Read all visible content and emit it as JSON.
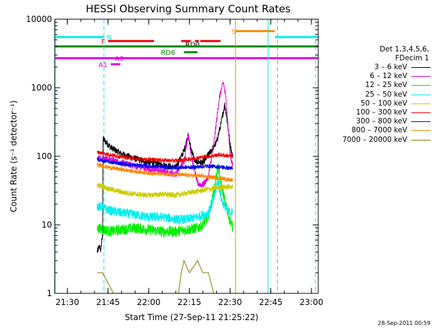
{
  "chart_data": {
    "type": "line",
    "title": "HESSI Observing Summary Count Rates",
    "xlabel": "Start Time (27-Sep-11 21:25:22)",
    "ylabel": "Count Rate (s⁻¹ detector⁻¹)",
    "ylog": true,
    "ylim": [
      1,
      10000
    ],
    "xlim": [
      "21:25:22",
      "23:02:30"
    ],
    "x_ticks": [
      "21:30",
      "21:45",
      "22:00",
      "22:15",
      "22:30",
      "22:45",
      "23:00"
    ],
    "y_ticks": [
      "1",
      "10",
      "100",
      "1000",
      "10000"
    ],
    "legend": {
      "placement": "right-outside",
      "header": [
        "Det 1,3,4,5,6,",
        "FDecim 1"
      ],
      "entries": [
        {
          "label": "3 – 6 keV",
          "color": "#000000"
        },
        {
          "label": "6 – 12 keV",
          "color": "#dd00dd"
        },
        {
          "label": "12 – 25 keV",
          "color": "#00ee00"
        },
        {
          "label": "25 – 50 keV",
          "color": "#00eeee"
        },
        {
          "label": "50 – 100 keV",
          "color": "#cccc00"
        },
        {
          "label": "100 – 300 keV",
          "color": "#ee0000"
        },
        {
          "label": "300 – 800 keV",
          "color": "#0000ee"
        },
        {
          "label": "800 – 7000 keV",
          "color": "#ff8800"
        },
        {
          "label": "7000 – 20000 keV",
          "color": "#887700"
        }
      ]
    },
    "series": [
      {
        "name": "3 – 6 keV",
        "color": "#000000",
        "noise": 0.05,
        "points": [
          [
            "21:41:00",
            4
          ],
          [
            "21:42:00",
            5
          ],
          [
            "21:42:10",
            4
          ],
          [
            "21:43:00",
            7
          ],
          [
            "21:43:10",
            180
          ],
          [
            "21:44:00",
            165
          ],
          [
            "21:46:00",
            135
          ],
          [
            "21:48:00",
            120
          ],
          [
            "21:50:00",
            108
          ],
          [
            "21:55:00",
            92
          ],
          [
            "22:00:00",
            82
          ],
          [
            "22:05:00",
            75
          ],
          [
            "22:10:00",
            68
          ],
          [
            "22:13:00",
            120
          ],
          [
            "22:14:30",
            200
          ],
          [
            "22:15:30",
            135
          ],
          [
            "22:17:00",
            85
          ],
          [
            "22:20:00",
            80
          ],
          [
            "22:23:00",
            120
          ],
          [
            "22:25:00",
            160
          ],
          [
            "22:26:30",
            280
          ],
          [
            "22:28:00",
            560
          ],
          [
            "22:28:30",
            450
          ],
          [
            "22:30:00",
            150
          ],
          [
            "22:31:00",
            95
          ]
        ]
      },
      {
        "name": "6 – 12 keV",
        "color": "#dd00dd",
        "noise": 0.05,
        "points": [
          [
            "21:41:00",
            95
          ],
          [
            "21:46:00",
            90
          ],
          [
            "21:50:00",
            80
          ],
          [
            "21:55:00",
            72
          ],
          [
            "22:00:00",
            66
          ],
          [
            "22:05:00",
            60
          ],
          [
            "22:10:00",
            55
          ],
          [
            "22:13:00",
            85
          ],
          [
            "22:14:30",
            210
          ],
          [
            "22:16:00",
            90
          ],
          [
            "22:18:00",
            40
          ],
          [
            "22:20:00",
            38
          ],
          [
            "22:22:00",
            50
          ],
          [
            "22:24:00",
            150
          ],
          [
            "22:26:00",
            700
          ],
          [
            "22:27:30",
            1200
          ],
          [
            "22:28:30",
            700
          ],
          [
            "22:30:00",
            110
          ],
          [
            "22:31:00",
            70
          ]
        ]
      },
      {
        "name": "12 – 25 keV",
        "color": "#00ee00",
        "noise": 0.08,
        "points": [
          [
            "21:41:00",
            9
          ],
          [
            "21:46:00",
            8
          ],
          [
            "21:50:00",
            8.5
          ],
          [
            "21:55:00",
            9
          ],
          [
            "22:00:00",
            8.5
          ],
          [
            "22:05:00",
            8
          ],
          [
            "22:10:00",
            8
          ],
          [
            "22:14:00",
            8.5
          ],
          [
            "22:18:00",
            9
          ],
          [
            "22:20:00",
            10
          ],
          [
            "22:22:00",
            13
          ],
          [
            "22:24:00",
            30
          ],
          [
            "22:25:30",
            70
          ],
          [
            "22:27:00",
            35
          ],
          [
            "22:29:00",
            15
          ],
          [
            "22:31:00",
            9
          ]
        ]
      },
      {
        "name": "25 – 50 keV",
        "color": "#00eeee",
        "noise": 0.07,
        "points": [
          [
            "21:41:00",
            19
          ],
          [
            "21:46:00",
            16
          ],
          [
            "21:50:00",
            15
          ],
          [
            "21:55:00",
            14
          ],
          [
            "22:00:00",
            13
          ],
          [
            "22:05:00",
            13
          ],
          [
            "22:10:00",
            12
          ],
          [
            "22:14:00",
            12
          ],
          [
            "22:18:00",
            13
          ],
          [
            "22:20:00",
            14
          ],
          [
            "22:22:00",
            15
          ],
          [
            "22:24:00",
            24
          ],
          [
            "22:25:30",
            45
          ],
          [
            "22:27:00",
            22
          ],
          [
            "22:29:00",
            16
          ],
          [
            "22:31:00",
            15
          ]
        ]
      },
      {
        "name": "50 – 100 keV",
        "color": "#cccc00",
        "noise": 0.04,
        "points": [
          [
            "21:41:00",
            38
          ],
          [
            "21:46:00",
            33
          ],
          [
            "21:50:00",
            30
          ],
          [
            "21:55:00",
            28
          ],
          [
            "22:00:00",
            27
          ],
          [
            "22:05:00",
            28
          ],
          [
            "22:10:00",
            27
          ],
          [
            "22:14:00",
            29
          ],
          [
            "22:18:00",
            31
          ],
          [
            "22:22:00",
            33
          ],
          [
            "22:26:00",
            35
          ],
          [
            "22:31:00",
            36
          ]
        ]
      },
      {
        "name": "100 – 300 keV",
        "color": "#ee0000",
        "noise": 0.03,
        "points": [
          [
            "21:41:00",
            115
          ],
          [
            "21:46:00",
            105
          ],
          [
            "21:50:00",
            98
          ],
          [
            "21:55:00",
            92
          ],
          [
            "22:00:00",
            90
          ],
          [
            "22:05:00",
            88
          ],
          [
            "22:10:00",
            86
          ],
          [
            "22:14:00",
            90
          ],
          [
            "22:18:00",
            95
          ],
          [
            "22:22:00",
            100
          ],
          [
            "22:26:00",
            105
          ],
          [
            "22:31:00",
            100
          ]
        ]
      },
      {
        "name": "300 – 800 keV",
        "color": "#0000ee",
        "noise": 0.03,
        "points": [
          [
            "21:41:00",
            90
          ],
          [
            "21:46:00",
            82
          ],
          [
            "21:50:00",
            78
          ],
          [
            "21:55:00",
            74
          ],
          [
            "22:00:00",
            72
          ],
          [
            "22:05:00",
            70
          ],
          [
            "22:10:00",
            68
          ],
          [
            "22:14:00",
            69
          ],
          [
            "22:18:00",
            70
          ],
          [
            "22:22:00",
            72
          ],
          [
            "22:26:00",
            70
          ],
          [
            "22:31:00",
            66
          ]
        ]
      },
      {
        "name": "800 – 7000 keV",
        "color": "#ff8800",
        "noise": 0.03,
        "points": [
          [
            "21:41:00",
            75
          ],
          [
            "21:46:00",
            68
          ],
          [
            "21:50:00",
            64
          ],
          [
            "21:55:00",
            60
          ],
          [
            "22:00:00",
            57
          ],
          [
            "22:05:00",
            55
          ],
          [
            "22:10:00",
            54
          ],
          [
            "22:14:00",
            53
          ],
          [
            "22:18:00",
            52
          ],
          [
            "22:22:00",
            50
          ],
          [
            "22:26:00",
            48
          ],
          [
            "22:31:00",
            45
          ]
        ]
      },
      {
        "name": "7000 – 20000 keV",
        "color": "#887700",
        "noise": 0.0,
        "points": [
          [
            "21:41:00",
            2
          ],
          [
            "21:43:00",
            2
          ],
          [
            "21:47:00",
            1
          ],
          [
            "22:11:00",
            1
          ],
          [
            "22:12:00",
            2
          ],
          [
            "22:13:00",
            3
          ],
          [
            "22:15:00",
            2
          ],
          [
            "22:18:00",
            3
          ],
          [
            "22:20:00",
            2
          ],
          [
            "22:22:00",
            2
          ],
          [
            "22:24:00",
            1
          ]
        ]
      }
    ],
    "flag_bars": [
      {
        "label": "N",
        "color": "#00eeee",
        "y": 5500,
        "ranges": [
          [
            "21:25:22",
            "21:43:30"
          ],
          [
            "22:46:30",
            "23:02:30"
          ]
        ],
        "label_at": "21:44:30"
      },
      {
        "label": "S",
        "color": "#ff8800",
        "y": 6700,
        "ranges": [
          [
            "22:32:00",
            "22:46:30"
          ]
        ],
        "label_at": "22:30:30"
      },
      {
        "label": "F",
        "color": "#ee0000",
        "y": 4800,
        "ranges": [
          [
            "21:45:00",
            "22:02:00"
          ],
          [
            "22:12:00",
            "22:15:30"
          ],
          [
            "22:17:00",
            "22:18:30"
          ],
          [
            "22:19:00",
            "22:26:30"
          ]
        ],
        "label_at": "21:42:30"
      },
      {
        "label": "RD0",
        "color": "#000000",
        "y": 4300,
        "ranges": [],
        "label_at": "22:13:30"
      },
      {
        "label": "",
        "color": "#008800",
        "y": 4000,
        "ranges": [
          [
            "21:25:22",
            "23:02:30"
          ]
        ],
        "label_at": ""
      },
      {
        "label": "RD6",
        "color": "#008800",
        "y": 3300,
        "ranges": [
          [
            "22:13:00",
            "22:18:00"
          ]
        ],
        "label_at": "22:04:30"
      },
      {
        "label": "A0",
        "color": "#dd00dd",
        "y": 2700,
        "ranges": [
          [
            "21:25:22",
            "23:02:30"
          ]
        ],
        "label_at": "21:47:30"
      },
      {
        "label": "A1",
        "color": "#dd00dd",
        "y": 2200,
        "ranges": [
          [
            "21:46:00",
            "21:49:30"
          ]
        ],
        "label_at": "21:41:30"
      }
    ],
    "vertical_lines": [
      {
        "time": "21:25:30",
        "color": "#00eeee",
        "style": "solid"
      },
      {
        "time": "21:43:30",
        "color": "#00eeee",
        "style": "dashed"
      },
      {
        "time": "22:32:00",
        "color": "#cc9900",
        "style": "solid"
      },
      {
        "time": "22:44:00",
        "color": "#00eeee",
        "style": "solid"
      },
      {
        "time": "22:47:30",
        "color": "#ff8800",
        "style": "dashed"
      },
      {
        "time": "23:01:30",
        "color": "#00eeee",
        "style": "dashed"
      }
    ]
  },
  "footer": {
    "datestamp": "28-Sep-2011 00:59"
  }
}
